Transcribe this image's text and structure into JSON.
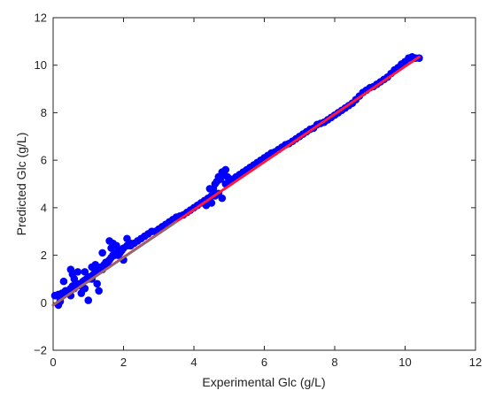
{
  "chart_data": {
    "type": "scatter",
    "xlabel": "Experimental Glc (g/L)",
    "ylabel": "Predicted Glc (g/L)",
    "xlim": [
      0,
      12
    ],
    "ylim": [
      -2,
      12
    ],
    "xticks": [
      0,
      2,
      4,
      6,
      8,
      10,
      12
    ],
    "yticks": [
      -2,
      0,
      2,
      4,
      6,
      8,
      10,
      12
    ],
    "xtick_labels": [
      "0",
      "2",
      "4",
      "6",
      "8",
      "10",
      "12"
    ],
    "ytick_labels": [
      "−2",
      "0",
      "2",
      "4",
      "6",
      "8",
      "10",
      "12"
    ],
    "grid": false,
    "series": [
      {
        "kind": "points",
        "color": "#0000ff",
        "x": [
          0.05,
          0.1,
          0.15,
          0.2,
          0.25,
          0.3,
          0.35,
          0.4,
          0.45,
          0.5,
          0.55,
          0.6,
          0.65,
          0.7,
          0.75,
          0.8,
          0.85,
          0.9,
          0.95,
          1.0,
          1.05,
          1.1,
          1.15,
          1.2,
          1.25,
          1.3,
          1.35,
          1.4,
          1.45,
          1.5,
          1.55,
          1.6,
          1.65,
          1.7,
          1.75,
          1.8,
          1.85,
          1.9,
          1.95,
          2.0,
          2.1,
          2.2,
          2.3,
          2.4,
          2.5,
          2.6,
          2.7,
          2.8,
          2.9,
          3.0,
          3.1,
          3.2,
          3.3,
          3.4,
          3.5,
          3.6,
          3.7,
          3.8,
          3.9,
          4.0,
          4.1,
          4.2,
          4.3,
          4.4,
          4.5,
          4.55,
          4.6,
          4.65,
          4.7,
          4.75,
          4.8,
          4.85,
          4.9,
          4.95,
          5.0,
          5.05,
          5.1,
          5.2,
          5.3,
          5.4,
          5.5,
          5.6,
          5.7,
          5.8,
          5.9,
          6.0,
          6.1,
          6.2,
          6.3,
          6.4,
          6.5,
          6.6,
          6.7,
          6.8,
          6.9,
          7.0,
          7.1,
          7.2,
          7.3,
          7.4,
          7.5,
          7.6,
          7.7,
          7.8,
          7.9,
          8.0,
          8.1,
          8.2,
          8.3,
          8.4,
          8.5,
          8.6,
          8.7,
          8.8,
          8.9,
          9.0,
          9.1,
          9.2,
          9.3,
          9.4,
          9.5,
          9.6,
          9.7,
          9.8,
          9.9,
          10.0,
          10.1,
          10.2,
          10.3,
          10.4,
          0.3,
          0.4,
          0.5,
          0.55,
          0.7,
          0.8,
          0.9,
          1.0,
          1.1,
          1.2,
          1.3,
          1.5,
          1.6,
          1.65,
          1.7,
          1.8,
          1.9,
          2.0,
          2.1,
          2.2,
          4.5,
          4.6,
          4.7,
          4.8,
          4.9,
          4.35,
          4.45,
          0.2,
          0.9,
          0.6,
          1.4,
          1.55,
          0.15,
          0.5,
          1.25
        ],
        "y": [
          0.3,
          0.3,
          0.35,
          0.2,
          0.4,
          0.35,
          0.5,
          0.45,
          0.5,
          0.6,
          0.7,
          0.6,
          0.7,
          0.75,
          0.8,
          0.7,
          0.9,
          0.95,
          1.0,
          1.0,
          1.1,
          1.0,
          1.2,
          1.3,
          1.35,
          1.4,
          1.5,
          1.4,
          1.6,
          1.7,
          1.6,
          1.8,
          1.9,
          2.0,
          2.0,
          2.1,
          2.0,
          2.2,
          2.2,
          2.3,
          2.4,
          2.5,
          2.5,
          2.6,
          2.7,
          2.8,
          2.9,
          3.0,
          3.0,
          3.1,
          3.2,
          3.3,
          3.4,
          3.5,
          3.6,
          3.65,
          3.7,
          3.8,
          3.9,
          4.0,
          4.1,
          4.2,
          4.3,
          4.4,
          4.5,
          4.8,
          5.0,
          5.1,
          5.3,
          5.2,
          5.5,
          5.4,
          5.6,
          5.3,
          5.2,
          5.1,
          5.2,
          5.3,
          5.4,
          5.5,
          5.6,
          5.7,
          5.8,
          5.9,
          6.0,
          6.1,
          6.2,
          6.3,
          6.35,
          6.45,
          6.55,
          6.65,
          6.7,
          6.8,
          6.9,
          7.0,
          7.1,
          7.2,
          7.3,
          7.35,
          7.5,
          7.55,
          7.6,
          7.7,
          7.8,
          7.9,
          8.0,
          8.1,
          8.2,
          8.3,
          8.4,
          8.55,
          8.7,
          8.85,
          8.95,
          9.05,
          9.1,
          9.2,
          9.3,
          9.4,
          9.5,
          9.65,
          9.8,
          9.9,
          10.05,
          10.15,
          10.3,
          10.35,
          10.3,
          10.3,
          0.9,
          0.5,
          1.4,
          1.2,
          1.3,
          0.4,
          1.3,
          0.1,
          1.5,
          1.6,
          0.5,
          1.7,
          2.6,
          2.3,
          2.5,
          2.4,
          2.1,
          1.8,
          2.7,
          2.4,
          4.2,
          4.5,
          4.6,
          4.4,
          5.0,
          4.1,
          4.8,
          0.05,
          0.6,
          1.0,
          2.1,
          1.7,
          -0.1,
          0.3,
          0.8
        ]
      },
      {
        "kind": "fit-line",
        "color": "#ff1a3c",
        "x": [
          0,
          10.4
        ],
        "y": [
          -0.1,
          10.35
        ]
      },
      {
        "kind": "fit-line-shadow",
        "color": "#7a7a7a",
        "x": [
          0,
          3.5
        ],
        "y": [
          -0.1,
          3.4
        ]
      }
    ]
  }
}
